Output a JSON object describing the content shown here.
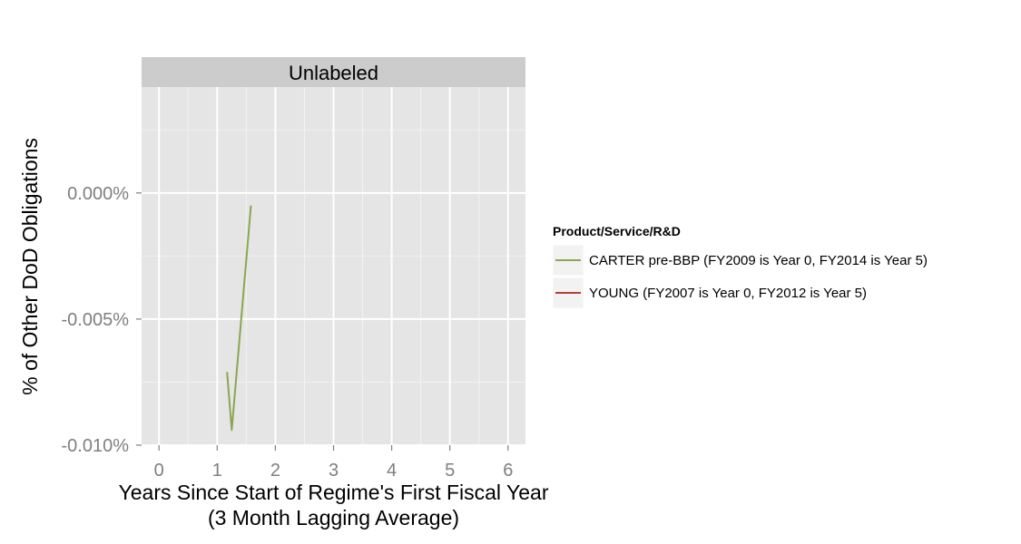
{
  "chart_data": {
    "type": "line",
    "facet_label": "Unlabeled",
    "xlabel_line1": "Years Since Start of Regime's First Fiscal Year",
    "xlabel_line2": "(3 Month Lagging Average)",
    "ylabel": "% of Other DoD Obligations",
    "x_ticks": [
      0,
      1,
      2,
      3,
      4,
      5,
      6
    ],
    "y_ticks": [
      -0.01,
      -0.005,
      0.0
    ],
    "y_tick_labels": [
      "-0.010%",
      "-0.005%",
      "0.000%"
    ],
    "xlim": [
      -0.3,
      6.3
    ],
    "ylim": [
      -0.01,
      0.0042
    ],
    "grid": true,
    "legend": {
      "title": "Product/Service/R&D",
      "position": "right"
    },
    "series": [
      {
        "name": "CARTER pre-BBP (FY2009 is Year 0, FY2014 is Year 5)",
        "color": "#8aa650",
        "points": [
          {
            "x": 1.17,
            "y": -0.0071
          },
          {
            "x": 1.25,
            "y": -0.0094
          },
          {
            "x": 1.58,
            "y": -0.0005
          }
        ]
      },
      {
        "name": "YOUNG (FY2007 is Year 0, FY2012 is Year 5)",
        "color": "#b5403a",
        "points": []
      }
    ]
  }
}
